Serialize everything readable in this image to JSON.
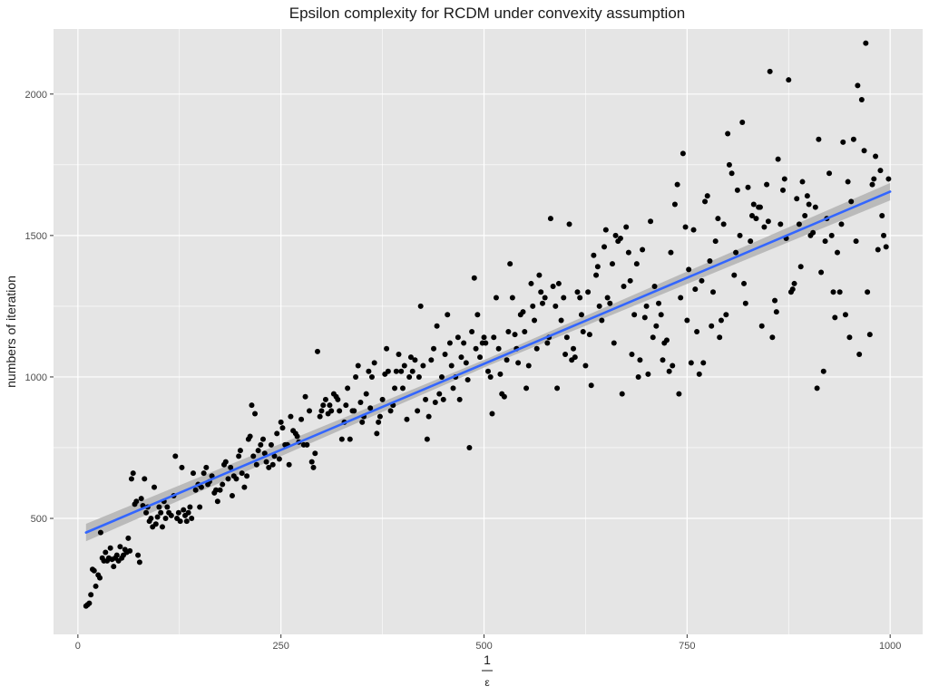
{
  "chart_data": {
    "type": "scatter",
    "title": "Epsilon complexity for RCDM under convexity assumption",
    "xlabel": {
      "numerator": "1",
      "denominator": "ε"
    },
    "ylabel": "numbers of iteration",
    "xlim": [
      -30,
      1040
    ],
    "ylim": [
      90,
      2230
    ],
    "xticks": [
      0,
      250,
      500,
      750,
      1000
    ],
    "yticks": [
      500,
      1000,
      1500,
      2000
    ],
    "xtick_labels": [
      "0",
      "250",
      "500",
      "750",
      "1000"
    ],
    "ytick_labels": [
      "500",
      "1000",
      "1500",
      "2000"
    ],
    "grid": true,
    "background": "#e5e5e5",
    "grid_color": "#ffffff",
    "point_color": "#000000",
    "fit_line": {
      "type": "linear",
      "color": "#3366ff",
      "band_color": "#b3b3b3",
      "x": [
        10,
        1000
      ],
      "y": [
        450,
        1655
      ],
      "band_halfwidth": 22
    },
    "points": [
      [
        10,
        190
      ],
      [
        12,
        195
      ],
      [
        14,
        200
      ],
      [
        16,
        230
      ],
      [
        18,
        320
      ],
      [
        20,
        315
      ],
      [
        22,
        260
      ],
      [
        25,
        300
      ],
      [
        27,
        290
      ],
      [
        28,
        450
      ],
      [
        30,
        360
      ],
      [
        32,
        350
      ],
      [
        34,
        380
      ],
      [
        36,
        350
      ],
      [
        38,
        360
      ],
      [
        40,
        395
      ],
      [
        42,
        355
      ],
      [
        44,
        330
      ],
      [
        46,
        360
      ],
      [
        48,
        370
      ],
      [
        50,
        350
      ],
      [
        52,
        400
      ],
      [
        54,
        360
      ],
      [
        56,
        370
      ],
      [
        58,
        390
      ],
      [
        60,
        380
      ],
      [
        62,
        430
      ],
      [
        64,
        385
      ],
      [
        66,
        640
      ],
      [
        68,
        660
      ],
      [
        70,
        550
      ],
      [
        72,
        560
      ],
      [
        74,
        370
      ],
      [
        76,
        345
      ],
      [
        78,
        570
      ],
      [
        80,
        545
      ],
      [
        82,
        640
      ],
      [
        84,
        520
      ],
      [
        86,
        540
      ],
      [
        88,
        490
      ],
      [
        90,
        500
      ],
      [
        92,
        470
      ],
      [
        94,
        610
      ],
      [
        96,
        480
      ],
      [
        98,
        505
      ],
      [
        100,
        540
      ],
      [
        102,
        520
      ],
      [
        104,
        470
      ],
      [
        106,
        560
      ],
      [
        108,
        500
      ],
      [
        110,
        540
      ],
      [
        112,
        520
      ],
      [
        115,
        510
      ],
      [
        118,
        580
      ],
      [
        120,
        720
      ],
      [
        122,
        500
      ],
      [
        124,
        520
      ],
      [
        126,
        490
      ],
      [
        128,
        680
      ],
      [
        130,
        530
      ],
      [
        132,
        510
      ],
      [
        134,
        490
      ],
      [
        136,
        520
      ],
      [
        138,
        540
      ],
      [
        140,
        500
      ],
      [
        142,
        660
      ],
      [
        145,
        600
      ],
      [
        148,
        620
      ],
      [
        150,
        540
      ],
      [
        152,
        610
      ],
      [
        155,
        660
      ],
      [
        158,
        680
      ],
      [
        160,
        620
      ],
      [
        162,
        630
      ],
      [
        165,
        650
      ],
      [
        168,
        590
      ],
      [
        170,
        600
      ],
      [
        172,
        560
      ],
      [
        175,
        600
      ],
      [
        178,
        620
      ],
      [
        180,
        690
      ],
      [
        182,
        700
      ],
      [
        185,
        640
      ],
      [
        188,
        680
      ],
      [
        190,
        580
      ],
      [
        192,
        650
      ],
      [
        195,
        640
      ],
      [
        198,
        720
      ],
      [
        200,
        740
      ],
      [
        202,
        660
      ],
      [
        205,
        610
      ],
      [
        208,
        650
      ],
      [
        210,
        780
      ],
      [
        212,
        790
      ],
      [
        214,
        900
      ],
      [
        216,
        720
      ],
      [
        218,
        870
      ],
      [
        220,
        690
      ],
      [
        222,
        740
      ],
      [
        225,
        760
      ],
      [
        228,
        780
      ],
      [
        230,
        730
      ],
      [
        232,
        700
      ],
      [
        235,
        680
      ],
      [
        238,
        760
      ],
      [
        240,
        690
      ],
      [
        242,
        720
      ],
      [
        245,
        800
      ],
      [
        248,
        710
      ],
      [
        250,
        840
      ],
      [
        252,
        820
      ],
      [
        255,
        760
      ],
      [
        258,
        760
      ],
      [
        260,
        690
      ],
      [
        262,
        860
      ],
      [
        265,
        810
      ],
      [
        268,
        800
      ],
      [
        270,
        790
      ],
      [
        272,
        770
      ],
      [
        275,
        850
      ],
      [
        278,
        760
      ],
      [
        280,
        930
      ],
      [
        282,
        760
      ],
      [
        285,
        880
      ],
      [
        288,
        700
      ],
      [
        290,
        680
      ],
      [
        292,
        730
      ],
      [
        295,
        1090
      ],
      [
        298,
        860
      ],
      [
        300,
        880
      ],
      [
        302,
        900
      ],
      [
        305,
        920
      ],
      [
        308,
        870
      ],
      [
        310,
        900
      ],
      [
        312,
        880
      ],
      [
        315,
        940
      ],
      [
        318,
        930
      ],
      [
        320,
        920
      ],
      [
        322,
        880
      ],
      [
        325,
        780
      ],
      [
        328,
        840
      ],
      [
        330,
        900
      ],
      [
        332,
        960
      ],
      [
        335,
        780
      ],
      [
        338,
        880
      ],
      [
        340,
        880
      ],
      [
        342,
        1000
      ],
      [
        345,
        1040
      ],
      [
        348,
        910
      ],
      [
        350,
        840
      ],
      [
        352,
        860
      ],
      [
        355,
        940
      ],
      [
        358,
        1020
      ],
      [
        360,
        890
      ],
      [
        362,
        1000
      ],
      [
        365,
        1050
      ],
      [
        368,
        800
      ],
      [
        370,
        840
      ],
      [
        372,
        860
      ],
      [
        375,
        920
      ],
      [
        378,
        1010
      ],
      [
        380,
        1100
      ],
      [
        382,
        1020
      ],
      [
        385,
        880
      ],
      [
        388,
        900
      ],
      [
        390,
        960
      ],
      [
        392,
        1020
      ],
      [
        395,
        1080
      ],
      [
        398,
        1020
      ],
      [
        400,
        960
      ],
      [
        402,
        1040
      ],
      [
        405,
        850
      ],
      [
        408,
        1000
      ],
      [
        410,
        1070
      ],
      [
        412,
        1020
      ],
      [
        415,
        1060
      ],
      [
        418,
        880
      ],
      [
        420,
        1000
      ],
      [
        422,
        1250
      ],
      [
        425,
        1040
      ],
      [
        428,
        920
      ],
      [
        430,
        780
      ],
      [
        432,
        860
      ],
      [
        435,
        1060
      ],
      [
        438,
        1100
      ],
      [
        440,
        910
      ],
      [
        442,
        1180
      ],
      [
        445,
        940
      ],
      [
        448,
        1000
      ],
      [
        450,
        920
      ],
      [
        452,
        1080
      ],
      [
        455,
        1220
      ],
      [
        458,
        1120
      ],
      [
        460,
        1040
      ],
      [
        462,
        960
      ],
      [
        465,
        1000
      ],
      [
        468,
        1140
      ],
      [
        470,
        920
      ],
      [
        472,
        1070
      ],
      [
        475,
        1120
      ],
      [
        478,
        1050
      ],
      [
        480,
        990
      ],
      [
        482,
        750
      ],
      [
        485,
        1160
      ],
      [
        488,
        1350
      ],
      [
        490,
        1100
      ],
      [
        492,
        1220
      ],
      [
        495,
        1070
      ],
      [
        498,
        1120
      ],
      [
        500,
        1140
      ],
      [
        502,
        1120
      ],
      [
        505,
        1020
      ],
      [
        508,
        1000
      ],
      [
        510,
        870
      ],
      [
        512,
        1140
      ],
      [
        515,
        1280
      ],
      [
        518,
        1100
      ],
      [
        520,
        1010
      ],
      [
        522,
        940
      ],
      [
        525,
        930
      ],
      [
        528,
        1060
      ],
      [
        530,
        1160
      ],
      [
        532,
        1400
      ],
      [
        535,
        1280
      ],
      [
        538,
        1150
      ],
      [
        540,
        1100
      ],
      [
        542,
        1050
      ],
      [
        545,
        1220
      ],
      [
        548,
        1230
      ],
      [
        550,
        1160
      ],
      [
        552,
        960
      ],
      [
        555,
        1040
      ],
      [
        558,
        1330
      ],
      [
        560,
        1250
      ],
      [
        562,
        1200
      ],
      [
        565,
        1100
      ],
      [
        568,
        1360
      ],
      [
        570,
        1300
      ],
      [
        572,
        1260
      ],
      [
        575,
        1280
      ],
      [
        578,
        1120
      ],
      [
        580,
        1140
      ],
      [
        582,
        1560
      ],
      [
        585,
        1320
      ],
      [
        588,
        1250
      ],
      [
        590,
        960
      ],
      [
        592,
        1330
      ],
      [
        595,
        1200
      ],
      [
        598,
        1280
      ],
      [
        600,
        1080
      ],
      [
        602,
        1140
      ],
      [
        605,
        1540
      ],
      [
        608,
        1060
      ],
      [
        610,
        1100
      ],
      [
        612,
        1070
      ],
      [
        615,
        1300
      ],
      [
        618,
        1280
      ],
      [
        620,
        1220
      ],
      [
        622,
        1160
      ],
      [
        625,
        1040
      ],
      [
        628,
        1300
      ],
      [
        630,
        1150
      ],
      [
        632,
        970
      ],
      [
        635,
        1430
      ],
      [
        638,
        1360
      ],
      [
        640,
        1390
      ],
      [
        642,
        1250
      ],
      [
        645,
        1200
      ],
      [
        648,
        1460
      ],
      [
        650,
        1520
      ],
      [
        652,
        1280
      ],
      [
        655,
        1260
      ],
      [
        658,
        1400
      ],
      [
        660,
        1120
      ],
      [
        662,
        1500
      ],
      [
        665,
        1480
      ],
      [
        668,
        1490
      ],
      [
        670,
        940
      ],
      [
        672,
        1320
      ],
      [
        675,
        1530
      ],
      [
        678,
        1440
      ],
      [
        680,
        1340
      ],
      [
        682,
        1080
      ],
      [
        685,
        1220
      ],
      [
        688,
        1400
      ],
      [
        690,
        1000
      ],
      [
        692,
        1060
      ],
      [
        695,
        1450
      ],
      [
        698,
        1210
      ],
      [
        700,
        1250
      ],
      [
        702,
        1010
      ],
      [
        705,
        1550
      ],
      [
        708,
        1140
      ],
      [
        710,
        1320
      ],
      [
        712,
        1180
      ],
      [
        715,
        1260
      ],
      [
        718,
        1220
      ],
      [
        720,
        1060
      ],
      [
        722,
        1120
      ],
      [
        725,
        1130
      ],
      [
        728,
        1020
      ],
      [
        730,
        1440
      ],
      [
        732,
        1040
      ],
      [
        735,
        1610
      ],
      [
        738,
        1680
      ],
      [
        740,
        940
      ],
      [
        742,
        1280
      ],
      [
        745,
        1790
      ],
      [
        748,
        1530
      ],
      [
        750,
        1200
      ],
      [
        752,
        1380
      ],
      [
        755,
        1050
      ],
      [
        758,
        1520
      ],
      [
        760,
        1310
      ],
      [
        762,
        1160
      ],
      [
        765,
        1010
      ],
      [
        768,
        1340
      ],
      [
        770,
        1050
      ],
      [
        772,
        1620
      ],
      [
        775,
        1640
      ],
      [
        778,
        1410
      ],
      [
        780,
        1180
      ],
      [
        782,
        1300
      ],
      [
        785,
        1480
      ],
      [
        788,
        1560
      ],
      [
        790,
        1140
      ],
      [
        792,
        1200
      ],
      [
        795,
        1540
      ],
      [
        798,
        1220
      ],
      [
        800,
        1860
      ],
      [
        802,
        1750
      ],
      [
        805,
        1720
      ],
      [
        808,
        1360
      ],
      [
        810,
        1440
      ],
      [
        812,
        1660
      ],
      [
        815,
        1500
      ],
      [
        818,
        1900
      ],
      [
        820,
        1330
      ],
      [
        822,
        1260
      ],
      [
        825,
        1670
      ],
      [
        828,
        1480
      ],
      [
        830,
        1570
      ],
      [
        832,
        1610
      ],
      [
        835,
        1560
      ],
      [
        838,
        1600
      ],
      [
        840,
        1600
      ],
      [
        842,
        1180
      ],
      [
        845,
        1530
      ],
      [
        848,
        1680
      ],
      [
        850,
        1550
      ],
      [
        852,
        2080
      ],
      [
        855,
        1140
      ],
      [
        858,
        1270
      ],
      [
        860,
        1230
      ],
      [
        862,
        1770
      ],
      [
        865,
        1540
      ],
      [
        868,
        1660
      ],
      [
        870,
        1700
      ],
      [
        872,
        1490
      ],
      [
        875,
        2050
      ],
      [
        878,
        1300
      ],
      [
        880,
        1310
      ],
      [
        882,
        1330
      ],
      [
        885,
        1630
      ],
      [
        888,
        1540
      ],
      [
        890,
        1390
      ],
      [
        892,
        1690
      ],
      [
        895,
        1570
      ],
      [
        898,
        1640
      ],
      [
        900,
        1610
      ],
      [
        902,
        1500
      ],
      [
        905,
        1510
      ],
      [
        908,
        1600
      ],
      [
        910,
        960
      ],
      [
        912,
        1840
      ],
      [
        915,
        1370
      ],
      [
        918,
        1020
      ],
      [
        920,
        1480
      ],
      [
        922,
        1560
      ],
      [
        925,
        1720
      ],
      [
        928,
        1500
      ],
      [
        930,
        1300
      ],
      [
        932,
        1210
      ],
      [
        935,
        1440
      ],
      [
        938,
        1300
      ],
      [
        940,
        1540
      ],
      [
        942,
        1830
      ],
      [
        945,
        1220
      ],
      [
        948,
        1690
      ],
      [
        950,
        1140
      ],
      [
        952,
        1620
      ],
      [
        955,
        1840
      ],
      [
        958,
        1480
      ],
      [
        960,
        2030
      ],
      [
        962,
        1080
      ],
      [
        965,
        1980
      ],
      [
        968,
        1800
      ],
      [
        970,
        2180
      ],
      [
        972,
        1300
      ],
      [
        975,
        1150
      ],
      [
        978,
        1680
      ],
      [
        980,
        1700
      ],
      [
        982,
        1780
      ],
      [
        985,
        1450
      ],
      [
        988,
        1730
      ],
      [
        990,
        1570
      ],
      [
        992,
        1500
      ],
      [
        995,
        1460
      ],
      [
        998,
        1700
      ]
    ]
  }
}
